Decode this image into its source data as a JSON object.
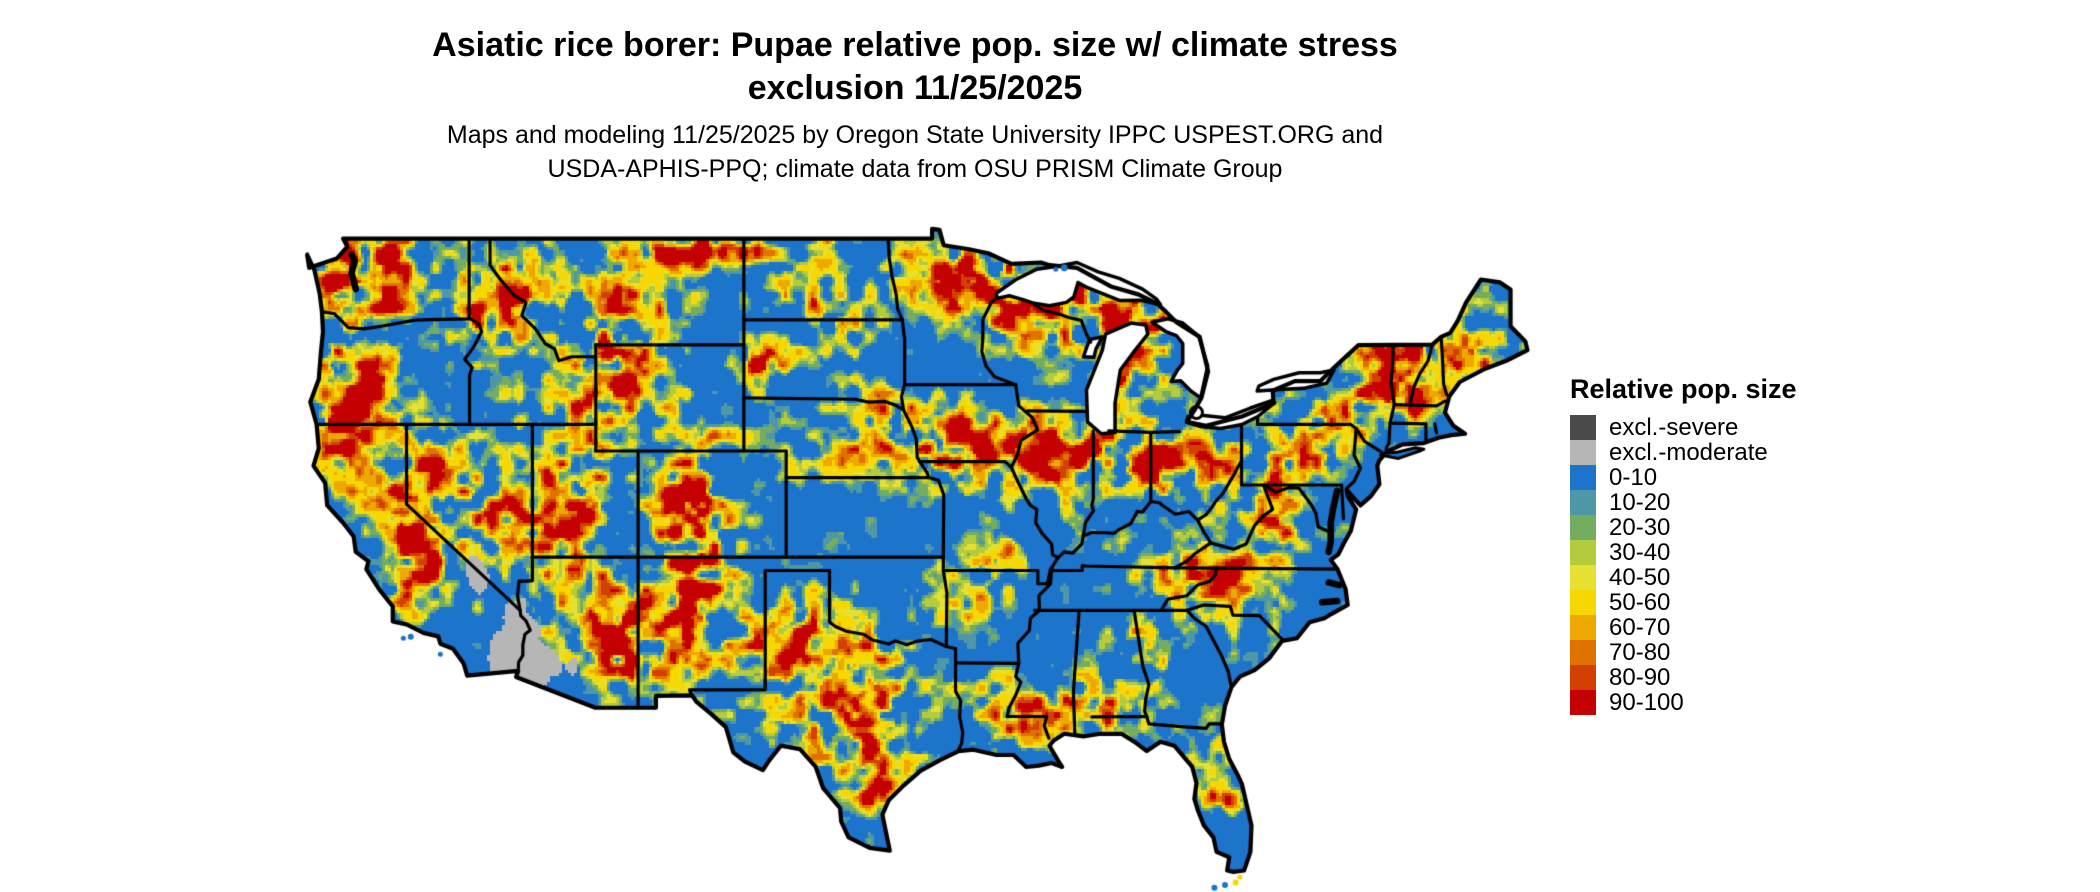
{
  "page": {
    "background": "#ffffff"
  },
  "title": {
    "line1": "Asiatic rice borer: Pupae relative pop. size w/ climate stress",
    "line2": "exclusion 11/25/2025"
  },
  "subtitle": {
    "line1": "Maps and modeling 11/25/2025 by Oregon State University IPPC USPEST.ORG and",
    "line2": "USDA-APHIS-PPQ; climate data from OSU PRISM Climate Group"
  },
  "map": {
    "description": "Conterminous United States raster map of Asiatic rice borer pupae relative population size",
    "land_base_color": "#1c74cb",
    "water_color": "#ffffff",
    "boundary_color": "#000000",
    "exclusion_moderate_color": "#b6b6b6",
    "exclusion_severe_color": "#4b4b4b"
  },
  "legend": {
    "title": "Relative pop. size",
    "items": [
      {
        "label": "excl.-severe",
        "color": "#4b4b4b"
      },
      {
        "label": "excl.-moderate",
        "color": "#b6b6b6"
      },
      {
        "label": "0-10",
        "color": "#1c74cb"
      },
      {
        "label": "10-20",
        "color": "#4e97a8"
      },
      {
        "label": "20-30",
        "color": "#74ad60"
      },
      {
        "label": "30-40",
        "color": "#b4cb3e"
      },
      {
        "label": "40-50",
        "color": "#e6e032"
      },
      {
        "label": "50-60",
        "color": "#f7d702"
      },
      {
        "label": "60-70",
        "color": "#eda900"
      },
      {
        "label": "70-80",
        "color": "#e07200"
      },
      {
        "label": "80-90",
        "color": "#d24002"
      },
      {
        "label": "90-100",
        "color": "#c40000"
      }
    ]
  }
}
